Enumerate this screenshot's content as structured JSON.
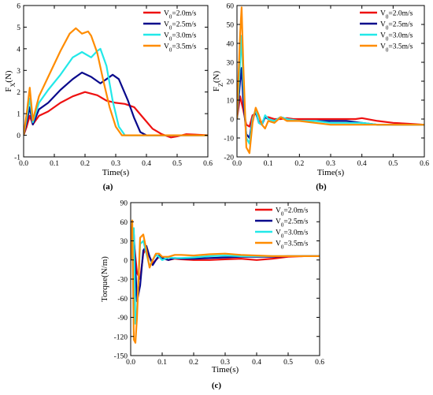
{
  "chart_data": [
    {
      "type": "line",
      "panel_label": "(a)",
      "ylabel": "F",
      "ylabel_sub": "X",
      "ylabel_unit": "(N)",
      "xlabel": "Time(s)",
      "xlim": [
        0,
        0.6
      ],
      "ylim": [
        -1,
        6
      ],
      "xticks": [
        0,
        0.1,
        0.2,
        0.3,
        0.4,
        0.5,
        0.6
      ],
      "xtick_labels": [
        "0.0",
        "0.1",
        "0.2",
        "0.3",
        "0.4",
        "0.5",
        "0.6"
      ],
      "yticks": [
        -1,
        0,
        1,
        2,
        3,
        4,
        5,
        6
      ],
      "ytick_labels": [
        "-1",
        "0",
        "1",
        "2",
        "3",
        "4",
        "5",
        "6"
      ],
      "legend_position": "top-right",
      "series": [
        {
          "name": "V0=2.0m/s",
          "color": "#ee1111",
          "x": [
            0,
            0.01,
            0.02,
            0.03,
            0.05,
            0.08,
            0.12,
            0.16,
            0.2,
            0.24,
            0.27,
            0.3,
            0.33,
            0.36,
            0.39,
            0.42,
            0.45,
            0.48,
            0.5,
            0.53,
            0.56,
            0.6
          ],
          "y": [
            0,
            0.4,
            0.9,
            0.5,
            0.9,
            1.1,
            1.5,
            1.8,
            2.0,
            1.85,
            1.6,
            1.5,
            1.45,
            1.3,
            0.8,
            0.3,
            0.05,
            -0.1,
            -0.05,
            0.05,
            0.03,
            0
          ]
        },
        {
          "name": "V0=2.5m/s",
          "color": "#0a0a8c",
          "x": [
            0,
            0.01,
            0.02,
            0.03,
            0.05,
            0.08,
            0.12,
            0.16,
            0.19,
            0.22,
            0.25,
            0.27,
            0.29,
            0.31,
            0.34,
            0.36,
            0.38,
            0.4,
            0.45,
            0.5,
            0.6
          ],
          "y": [
            0,
            0.6,
            1.3,
            0.5,
            1.2,
            1.5,
            2.1,
            2.6,
            2.9,
            2.7,
            2.4,
            2.6,
            2.8,
            2.6,
            1.6,
            0.8,
            0.15,
            0,
            0,
            0,
            0
          ]
        },
        {
          "name": "V0=3.0m/s",
          "color": "#22e8e8",
          "x": [
            0,
            0.01,
            0.02,
            0.03,
            0.05,
            0.08,
            0.12,
            0.16,
            0.19,
            0.22,
            0.24,
            0.25,
            0.27,
            0.29,
            0.31,
            0.33,
            0.36,
            0.4,
            0.5,
            0.6
          ],
          "y": [
            0,
            0.8,
            1.7,
            0.6,
            1.5,
            2.1,
            2.8,
            3.6,
            3.85,
            3.6,
            3.9,
            4.0,
            3.2,
            1.6,
            0.4,
            0,
            0,
            0,
            0,
            0
          ]
        },
        {
          "name": "V0=3.5m/s",
          "color": "#ff8c00",
          "x": [
            0,
            0.01,
            0.02,
            0.03,
            0.05,
            0.08,
            0.12,
            0.15,
            0.17,
            0.19,
            0.21,
            0.22,
            0.24,
            0.26,
            0.28,
            0.3,
            0.32,
            0.35,
            0.4,
            0.5,
            0.6
          ],
          "y": [
            0,
            1.0,
            2.2,
            0.7,
            1.8,
            2.7,
            3.9,
            4.7,
            4.95,
            4.7,
            4.8,
            4.6,
            3.8,
            2.5,
            1.3,
            0.4,
            0,
            0,
            0,
            0,
            0
          ]
        }
      ]
    },
    {
      "type": "line",
      "panel_label": "(b)",
      "ylabel": "F",
      "ylabel_sub": "Z",
      "ylabel_unit": "(N)",
      "xlabel": "Time(s)",
      "xlim": [
        0,
        0.6
      ],
      "ylim": [
        -20,
        60
      ],
      "xticks": [
        0,
        0.1,
        0.2,
        0.3,
        0.4,
        0.5,
        0.6
      ],
      "xtick_labels": [
        "0.0",
        "0.1",
        "0.2",
        "0.3",
        "0.4",
        "0.5",
        "0.6"
      ],
      "yticks": [
        -20,
        -10,
        0,
        10,
        20,
        30,
        40,
        50,
        60
      ],
      "ytick_labels": [
        "-20",
        "-10",
        "0",
        "10",
        "20",
        "30",
        "40",
        "50",
        "60"
      ],
      "legend_position": "top-right",
      "series": [
        {
          "name": "V0=2.0m/s",
          "color": "#ee1111",
          "x": [
            0,
            0.01,
            0.02,
            0.03,
            0.04,
            0.05,
            0.06,
            0.07,
            0.08,
            0.09,
            0.1,
            0.12,
            0.14,
            0.16,
            0.18,
            0.22,
            0.28,
            0.34,
            0.38,
            0.4,
            0.45,
            0.5,
            0.55,
            0.6
          ],
          "y": [
            0,
            12,
            5,
            -3,
            -4,
            2,
            3,
            -1,
            -2,
            1,
            1,
            0,
            0,
            0.5,
            0,
            0,
            0,
            0,
            0,
            0.5,
            -1,
            -2,
            -2.5,
            -3
          ]
        },
        {
          "name": "V0=2.5m/s",
          "color": "#0a0a8c",
          "x": [
            0,
            0.01,
            0.015,
            0.02,
            0.03,
            0.04,
            0.05,
            0.06,
            0.07,
            0.08,
            0.09,
            0.1,
            0.12,
            0.14,
            0.16,
            0.2,
            0.25,
            0.3,
            0.35,
            0.4,
            0.45,
            0.5,
            0.55,
            0.6
          ],
          "y": [
            0,
            20,
            27,
            10,
            -8,
            -10,
            0,
            4,
            -2,
            -3,
            1,
            0,
            -1,
            1,
            0,
            -1,
            -1,
            -1,
            -1,
            -2,
            -3,
            -3,
            -3,
            -3
          ]
        },
        {
          "name": "V0=3.0m/s",
          "color": "#22e8e8",
          "x": [
            0,
            0.01,
            0.015,
            0.02,
            0.03,
            0.04,
            0.05,
            0.06,
            0.07,
            0.08,
            0.09,
            0.1,
            0.12,
            0.14,
            0.16,
            0.2,
            0.25,
            0.3,
            0.35,
            0.4,
            0.45,
            0.5,
            0.55,
            0.6
          ],
          "y": [
            0,
            30,
            44,
            20,
            -10,
            -13,
            0,
            5,
            -2,
            -3,
            2,
            0,
            -1,
            1,
            0,
            -1,
            -1,
            -2,
            -2,
            -2,
            -3,
            -3,
            -3,
            -3
          ]
        },
        {
          "name": "V0=3.5m/s",
          "color": "#ff8c00",
          "x": [
            0,
            0.01,
            0.015,
            0.02,
            0.03,
            0.04,
            0.05,
            0.06,
            0.07,
            0.08,
            0.09,
            0.1,
            0.12,
            0.14,
            0.16,
            0.2,
            0.25,
            0.3,
            0.35,
            0.4,
            0.45,
            0.5,
            0.55,
            0.6
          ],
          "y": [
            0,
            45,
            59,
            30,
            -15,
            -18,
            -2,
            6,
            2,
            -3,
            -5,
            -1,
            -2,
            1,
            -1,
            -1,
            -2,
            -3,
            -3,
            -3,
            -3,
            -3,
            -3,
            -3
          ]
        }
      ]
    },
    {
      "type": "line",
      "panel_label": "(c)",
      "ylabel": "Torque(N/m)",
      "xlabel": "Time(s)",
      "xlim": [
        0,
        0.6
      ],
      "ylim": [
        -150,
        90
      ],
      "xticks": [
        0,
        0.1,
        0.2,
        0.3,
        0.4,
        0.5,
        0.6
      ],
      "xtick_labels": [
        "0.0",
        "0.1",
        "0.2",
        "0.3",
        "0.4",
        "0.5",
        "0.6"
      ],
      "yticks": [
        -150,
        -120,
        -90,
        -60,
        -30,
        0,
        30,
        60,
        90
      ],
      "ytick_labels": [
        "-150",
        "-120",
        "-90",
        "-60",
        "-30",
        "0",
        "30",
        "60",
        "90"
      ],
      "legend_position": "top-right",
      "series": [
        {
          "name": "V0=2.0m/s",
          "color": "#ee1111",
          "x": [
            0,
            0.01,
            0.02,
            0.03,
            0.04,
            0.05,
            0.06,
            0.07,
            0.08,
            0.09,
            0.1,
            0.12,
            0.14,
            0.16,
            0.2,
            0.25,
            0.3,
            0.35,
            0.4,
            0.45,
            0.5,
            0.55,
            0.6
          ],
          "y": [
            0,
            30,
            -20,
            -30,
            10,
            18,
            5,
            -5,
            0,
            5,
            3,
            0,
            2,
            1,
            0,
            0,
            1,
            2,
            0,
            2,
            5,
            6,
            6
          ]
        },
        {
          "name": "V0=2.5m/s",
          "color": "#0a0a8c",
          "x": [
            0,
            0.01,
            0.02,
            0.03,
            0.04,
            0.05,
            0.06,
            0.07,
            0.08,
            0.09,
            0.1,
            0.12,
            0.14,
            0.16,
            0.2,
            0.25,
            0.3,
            0.35,
            0.4,
            0.45,
            0.5,
            0.55,
            0.6
          ],
          "y": [
            0,
            40,
            -65,
            -40,
            15,
            22,
            5,
            -8,
            0,
            7,
            3,
            0,
            3,
            2,
            2,
            3,
            4,
            5,
            5,
            5,
            6,
            6,
            6
          ]
        },
        {
          "name": "V0=3.0m/s",
          "color": "#22e8e8",
          "x": [
            0,
            0.01,
            0.015,
            0.02,
            0.03,
            0.04,
            0.05,
            0.06,
            0.07,
            0.08,
            0.09,
            0.1,
            0.12,
            0.14,
            0.16,
            0.2,
            0.25,
            0.3,
            0.35,
            0.4,
            0.45,
            0.5,
            0.55,
            0.6
          ],
          "y": [
            0,
            50,
            -100,
            -80,
            25,
            30,
            10,
            -10,
            0,
            8,
            5,
            0,
            4,
            3,
            3,
            4,
            6,
            7,
            6,
            6,
            6,
            6,
            6,
            6
          ]
        },
        {
          "name": "V0=3.5m/s",
          "color": "#ff8c00",
          "x": [
            0,
            0.005,
            0.01,
            0.015,
            0.02,
            0.03,
            0.04,
            0.05,
            0.06,
            0.07,
            0.08,
            0.09,
            0.1,
            0.12,
            0.14,
            0.16,
            0.2,
            0.25,
            0.3,
            0.35,
            0.4,
            0.45,
            0.5,
            0.55,
            0.6
          ],
          "y": [
            0,
            62,
            -125,
            -130,
            -90,
            35,
            40,
            15,
            -12,
            0,
            10,
            10,
            5,
            5,
            8,
            8,
            7,
            9,
            10,
            8,
            7,
            6,
            6,
            6,
            6
          ]
        }
      ]
    }
  ]
}
